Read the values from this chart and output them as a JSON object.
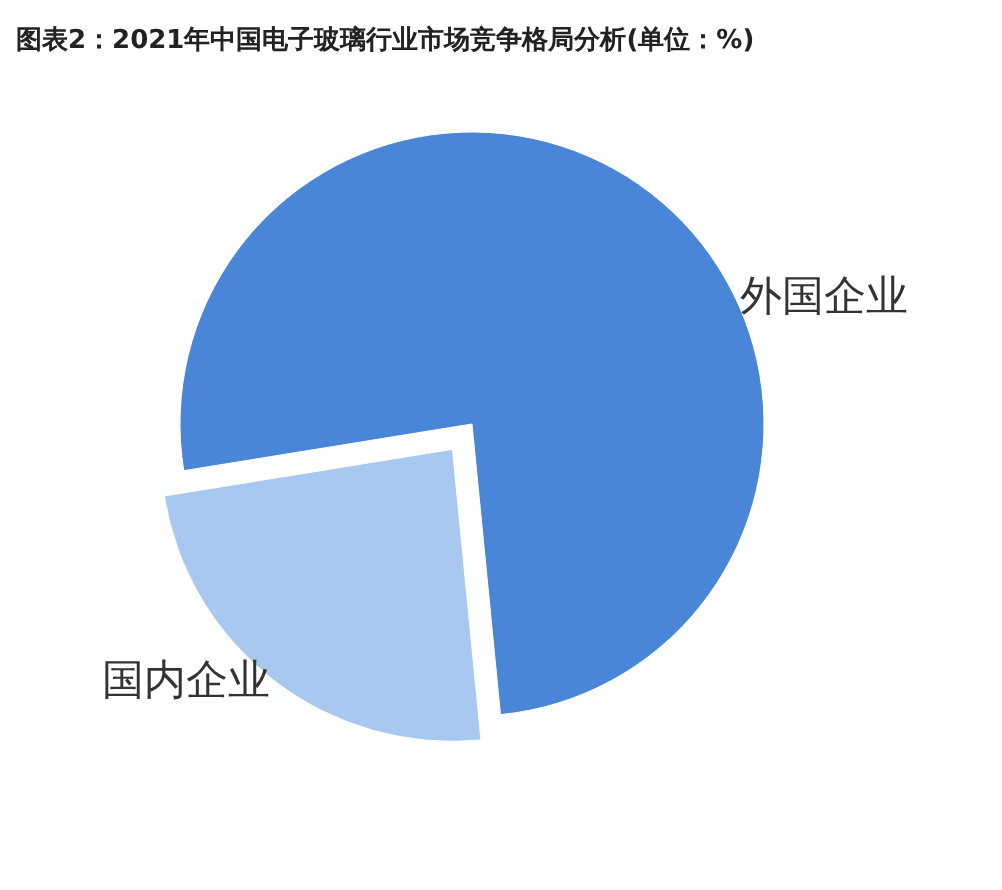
{
  "chart_data": {
    "type": "pie",
    "title": "图表2：2021年中国电子玻璃行业市场竞争格局分析(单位：%)",
    "categories": [
      "外国企业",
      "国内企业"
    ],
    "values": [
      76,
      24
    ],
    "colors": [
      "#4a86d8",
      "#a8c8ef"
    ]
  }
}
